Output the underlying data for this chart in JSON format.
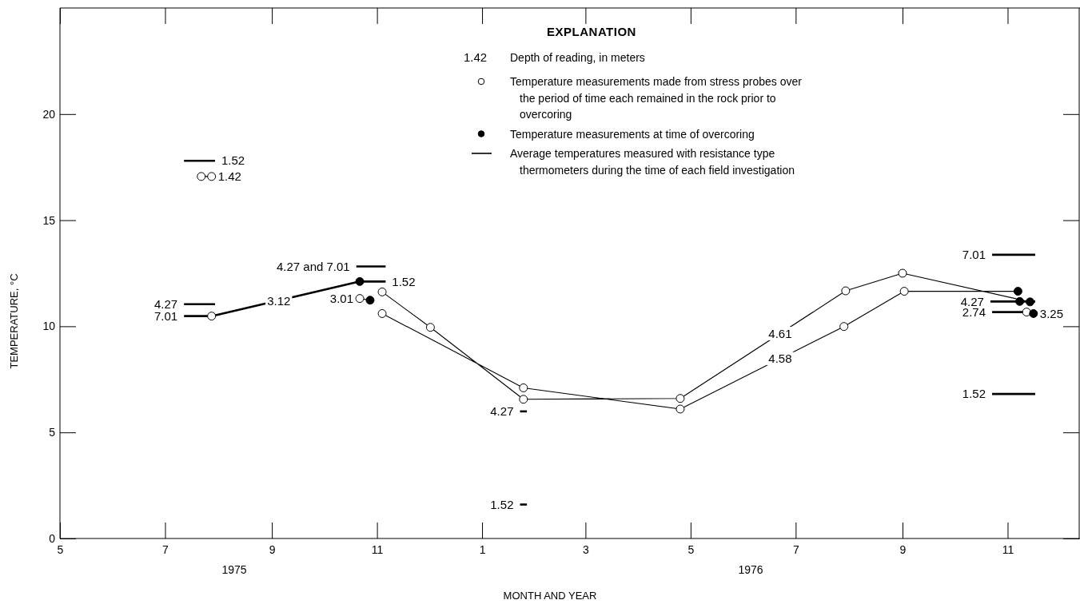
{
  "chart_data": {
    "type": "line",
    "xlabel": "MONTH AND YEAR",
    "ylabel": "TEMPERATURE, °C",
    "legend_title": "EXPLANATION",
    "legend": "top",
    "xlim": [
      "1975-05-01",
      "1976-12-13"
    ],
    "ylim": [
      0,
      25
    ],
    "xticks": [
      {
        "value": "1975-05-01",
        "label": "5"
      },
      {
        "value": "1975-07-01",
        "label": "7"
      },
      {
        "value": "1975-09-01",
        "label": "9"
      },
      {
        "value": "1975-11-01",
        "label": "11"
      },
      {
        "value": "1976-01-01",
        "label": "1"
      },
      {
        "value": "1976-03-01",
        "label": "3"
      },
      {
        "value": "1976-05-01",
        "label": "5"
      },
      {
        "value": "1976-07-01",
        "label": "7"
      },
      {
        "value": "1976-09-01",
        "label": "9"
      },
      {
        "value": "1976-11-01",
        "label": "11"
      }
    ],
    "yticks": [
      0,
      5,
      10,
      15,
      20
    ],
    "series": [
      {
        "name": "Temperature measurements made from stress probes over the period of time each remained in the rock prior to overcoring",
        "type": "scatter",
        "marker": "circle",
        "color": "#ffffff",
        "x": [
          "1975-07-28",
          "1975-07-22",
          "1975-07-28",
          "1975-10-22",
          "1975-11-04",
          "1975-11-04",
          "1975-12-02",
          "1976-01-25",
          "1976-01-25",
          "1976-04-25",
          "1976-04-25",
          "1976-07-30",
          "1976-09-01",
          "1976-07-29",
          "1976-09-02",
          "1976-11-12"
        ],
        "values": [
          10.48,
          17.06,
          17.06,
          11.31,
          11.62,
          10.6,
          9.95,
          7.1,
          6.56,
          6.6,
          6.1,
          11.67,
          12.5,
          9.99,
          11.65,
          10.67
        ]
      },
      {
        "name": "Temperature measurements at time of overcoring",
        "type": "scatter",
        "marker": "circle",
        "color": "#000000",
        "x": [
          "1975-10-22",
          "1975-10-28",
          "1976-11-07",
          "1976-11-08",
          "1976-11-14",
          "1976-11-16"
        ],
        "values": [
          12.11,
          11.23,
          11.65,
          11.17,
          11.15,
          10.6
        ]
      },
      {
        "name": "Average temperatures measured with resistance type thermometers during the time of each field investigation",
        "color": "#000000",
        "x": [
          "1975-07-12",
          "1975-07-30"
        ],
        "values": [
          17.8,
          17.8
        ]
      },
      {
        "color": "#000000",
        "x": [
          "1975-07-12",
          "1975-07-30"
        ],
        "values": [
          11.04,
          11.04
        ]
      },
      {
        "color": "#000000",
        "x": [
          "1975-07-12",
          "1975-07-28",
          "1975-10-22",
          "1975-11-06"
        ],
        "values": [
          10.48,
          10.48,
          12.11,
          12.11
        ]
      },
      {
        "color": "#000000",
        "x": [
          "1975-10-20",
          "1975-11-06"
        ],
        "values": [
          12.82,
          12.82
        ]
      },
      {
        "color": "#000000",
        "x": [
          "1976-01-23",
          "1976-01-27"
        ],
        "values": [
          5.99,
          5.99
        ]
      },
      {
        "color": "#000000",
        "x": [
          "1976-01-23",
          "1976-01-27"
        ],
        "values": [
          1.6,
          1.6
        ]
      },
      {
        "color": "#000000",
        "x": [
          "1976-10-23",
          "1976-11-17"
        ],
        "values": [
          13.37,
          13.37
        ]
      },
      {
        "color": "#000000",
        "x": [
          "1976-10-22",
          "1976-11-17"
        ],
        "values": [
          11.17,
          11.17
        ]
      },
      {
        "color": "#000000",
        "x": [
          "1976-10-23",
          "1976-11-12"
        ],
        "values": [
          10.67,
          10.67
        ]
      },
      {
        "color": "#000000",
        "x": [
          "1976-10-23",
          "1976-11-17"
        ],
        "values": [
          6.81,
          6.81
        ]
      },
      {
        "color": "#000000",
        "marker": "none",
        "x": [
          "1975-07-22",
          "1975-07-28",
          null,
          "1975-10-22",
          "1975-10-28",
          null,
          "1975-11-04",
          "1975-12-02",
          "1976-01-25",
          "1976-04-25",
          "1976-07-30",
          "1976-09-01",
          "1976-11-14",
          null,
          "1975-11-04",
          "1976-01-25",
          "1976-04-25",
          "1976-07-29",
          "1976-09-02",
          "1976-11-07",
          null,
          "1976-11-12",
          "1976-11-16"
        ],
        "values": [
          17.06,
          17.06,
          null,
          11.31,
          11.23,
          null,
          11.62,
          9.95,
          6.56,
          6.6,
          11.67,
          12.5,
          11.15,
          null,
          10.6,
          7.1,
          6.1,
          9.99,
          11.65,
          11.65,
          null,
          10.67,
          10.6
        ]
      }
    ],
    "annotations": [
      "1.42",
      "Depth of reading, in meters",
      "1975",
      "1976",
      {
        "text": "1.52",
        "x": "1975-07-30",
        "y": 17.8
      },
      {
        "text": "1.42",
        "x": "1975-07-28",
        "y": 17.06
      },
      {
        "text": "4.27",
        "x": "1975-07-12",
        "y": 11.04
      },
      {
        "text": "7.01",
        "x": "1975-07-12",
        "y": 10.48
      },
      {
        "text": "3.12",
        "x": "1975-09-05",
        "y": 11.2
      },
      {
        "text": "4.27 and 7.01",
        "x": "1975-10-20",
        "y": 12.82
      },
      {
        "text": "1.52",
        "x": "1975-11-06",
        "y": 12.11
      },
      {
        "text": "3.01",
        "x": "1975-10-22",
        "y": 11.31
      },
      {
        "text": "4.27",
        "x": "1976-01-23",
        "y": 5.99
      },
      {
        "text": "1.52",
        "x": "1976-01-23",
        "y": 1.6
      },
      {
        "text": "4.61",
        "x": "1976-06-22",
        "y": 9.65
      },
      {
        "text": "4.58",
        "x": "1976-06-22",
        "y": 8.47
      },
      {
        "text": "7.01",
        "x": "1976-10-23",
        "y": 13.37
      },
      {
        "text": "4.27",
        "x": "1976-10-22",
        "y": 11.17
      },
      {
        "text": "2.74",
        "x": "1976-10-23",
        "y": 10.67
      },
      {
        "text": "3.25",
        "x": "1976-11-16",
        "y": 10.6
      },
      {
        "text": "1.52",
        "x": "1976-10-23",
        "y": 6.81
      }
    ]
  }
}
